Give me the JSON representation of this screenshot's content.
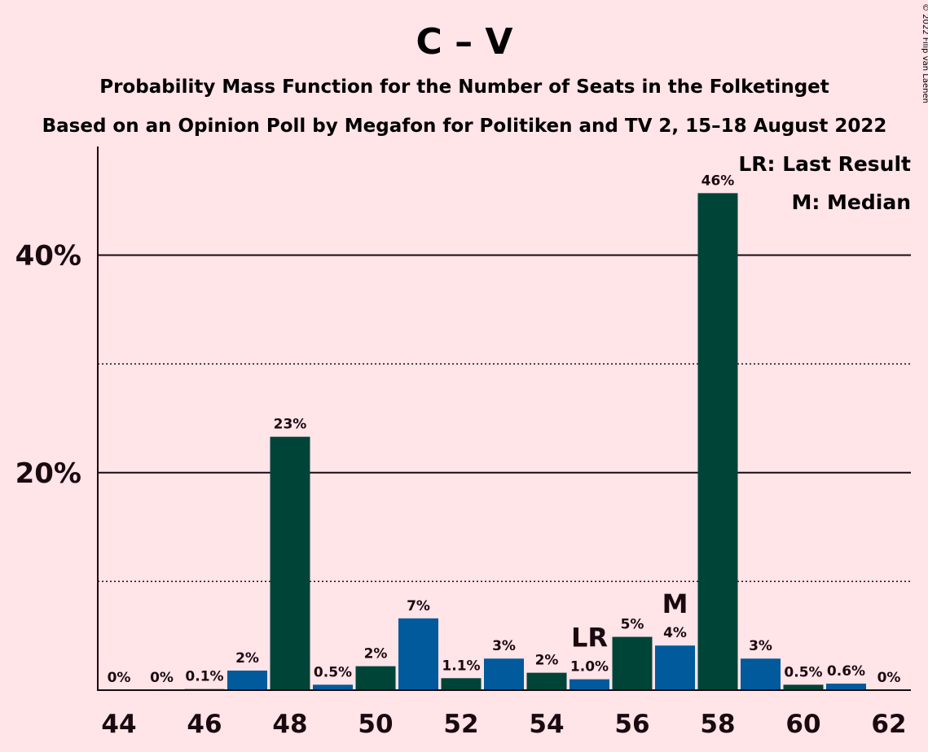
{
  "chart_data": {
    "type": "bar",
    "title": "C – V",
    "subtitle": "Probability Mass Function for the Number of Seats in the Folketinget",
    "subtitle2": "Based on an Opinion Poll by Megafon for Politiken and TV 2, 15–18 August 2022",
    "copyright": "© 2022 Filip van Laenen",
    "x": [
      44,
      45,
      46,
      47,
      48,
      49,
      50,
      51,
      52,
      53,
      54,
      55,
      56,
      57,
      58,
      59,
      60,
      61,
      62
    ],
    "values": [
      0,
      0,
      0.1,
      1.8,
      23.3,
      0.5,
      2.2,
      6.6,
      1.1,
      2.9,
      1.6,
      1.0,
      4.9,
      4.1,
      45.7,
      2.9,
      0.5,
      0.6,
      0
    ],
    "value_labels": [
      "0%",
      "0%",
      "0.1%",
      "2%",
      "23%",
      "0.5%",
      "2%",
      "7%",
      "1.1%",
      "3%",
      "2%",
      "1.0%",
      "5%",
      "4%",
      "46%",
      "3%",
      "0.5%",
      "0.6%",
      "0%"
    ],
    "x_tick_labels": [
      "44",
      "46",
      "48",
      "50",
      "52",
      "54",
      "56",
      "58",
      "60",
      "62"
    ],
    "x_tick_values": [
      44,
      46,
      48,
      50,
      52,
      54,
      56,
      58,
      60,
      62
    ],
    "y_ticks": [
      {
        "value": 20,
        "label": "20%"
      },
      {
        "value": 40,
        "label": "40%"
      }
    ],
    "y_minor_gridlines": [
      10,
      30
    ],
    "ylim": [
      0,
      50
    ],
    "colors": {
      "dark": "#004438",
      "blue": "#005a9c"
    },
    "bar_colors": [
      "dark",
      "blue",
      "dark",
      "blue",
      "dark",
      "blue",
      "dark",
      "blue",
      "dark",
      "blue",
      "dark",
      "blue",
      "dark",
      "blue",
      "dark",
      "blue",
      "dark",
      "blue",
      "dark"
    ],
    "annotations": [
      {
        "x": 55,
        "text": "LR"
      },
      {
        "x": 57,
        "text": "M"
      }
    ],
    "legend": {
      "position": "top-right",
      "entries": [
        "LR: Last Result",
        "M: Median"
      ]
    }
  }
}
